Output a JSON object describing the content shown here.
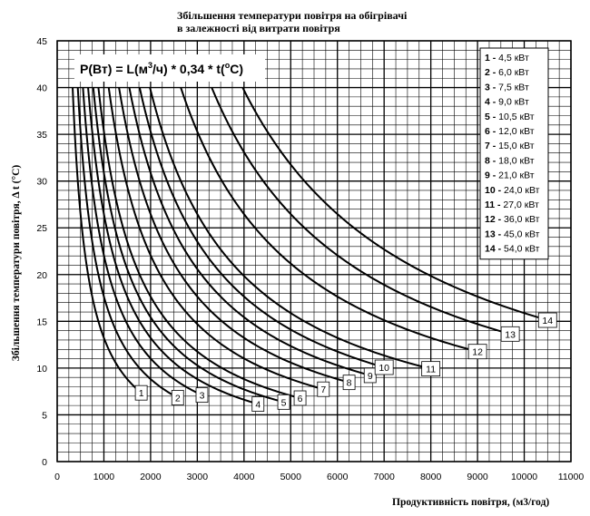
{
  "chart_data": {
    "type": "line",
    "title_lines": [
      "Збільшення температури повітря на обігрівачі",
      "в залежності від витрати повітря"
    ],
    "xlabel": "Продуктивність повітря, (м3/год)",
    "ylabel": "Збільшення температури повітря,  Δ t (°C)",
    "xlim": [
      0,
      11000
    ],
    "ylim": [
      0,
      45
    ],
    "xticks": [
      0,
      1000,
      2000,
      3000,
      4000,
      5000,
      6000,
      7000,
      8000,
      9000,
      10000,
      11000
    ],
    "yticks": [
      0,
      5,
      10,
      15,
      20,
      25,
      30,
      35,
      40,
      45
    ],
    "x_minor_step": 250,
    "y_minor_step": 1,
    "grid": true,
    "formula": {
      "prefix": "P(Вт) = L(м",
      "sup1": "3",
      "middle": "/ч) * 0,34 * t(",
      "sup2": "o",
      "suffix": "C)"
    },
    "legend_position": "top-right",
    "series": [
      {
        "id": "1",
        "label": "4,5 кВт",
        "power_w": 4500,
        "x_range": [
          331,
          1800
        ],
        "marker_x": 1800
      },
      {
        "id": "2",
        "label": "6,0 кВт",
        "power_w": 6000,
        "x_range": [
          441,
          2580
        ],
        "marker_x": 2580
      },
      {
        "id": "3",
        "label": "7,5 кВт",
        "power_w": 7500,
        "x_range": [
          551,
          3100
        ],
        "marker_x": 3100
      },
      {
        "id": "4",
        "label": "9,0 кВт",
        "power_w": 9000,
        "x_range": [
          662,
          4300
        ],
        "marker_x": 4300
      },
      {
        "id": "5",
        "label": "10,5 кВт",
        "power_w": 10500,
        "x_range": [
          772,
          4850
        ],
        "marker_x": 4850
      },
      {
        "id": "6",
        "label": "12,0 кВт",
        "power_w": 12000,
        "x_range": [
          882,
          5200
        ],
        "marker_x": 5200
      },
      {
        "id": "7",
        "label": "15,0 кВт",
        "power_w": 15000,
        "x_range": [
          1103,
          5700
        ],
        "marker_x": 5700
      },
      {
        "id": "8",
        "label": "18,0 кВт",
        "power_w": 18000,
        "x_range": [
          1324,
          6250
        ],
        "marker_x": 6250
      },
      {
        "id": "9",
        "label": "21,0 кВт",
        "power_w": 21000,
        "x_range": [
          1544,
          6700
        ],
        "marker_x": 6700
      },
      {
        "id": "10",
        "label": "24,0 кВт",
        "power_w": 24000,
        "x_range": [
          1765,
          7000
        ],
        "marker_x": 7000
      },
      {
        "id": "11",
        "label": "27,0 кВт",
        "power_w": 27000,
        "x_range": [
          1985,
          8000
        ],
        "marker_x": 8000
      },
      {
        "id": "12",
        "label": "36,0 кВт",
        "power_w": 36000,
        "x_range": [
          2647,
          9000
        ],
        "marker_x": 9000
      },
      {
        "id": "13",
        "label": "45,0 кВт",
        "power_w": 45000,
        "x_range": [
          3309,
          9700
        ],
        "marker_x": 9700
      },
      {
        "id": "14",
        "label": "54,0 кВт",
        "power_w": 54000,
        "x_range": [
          3971,
          10500
        ],
        "marker_x": 10500
      }
    ]
  }
}
